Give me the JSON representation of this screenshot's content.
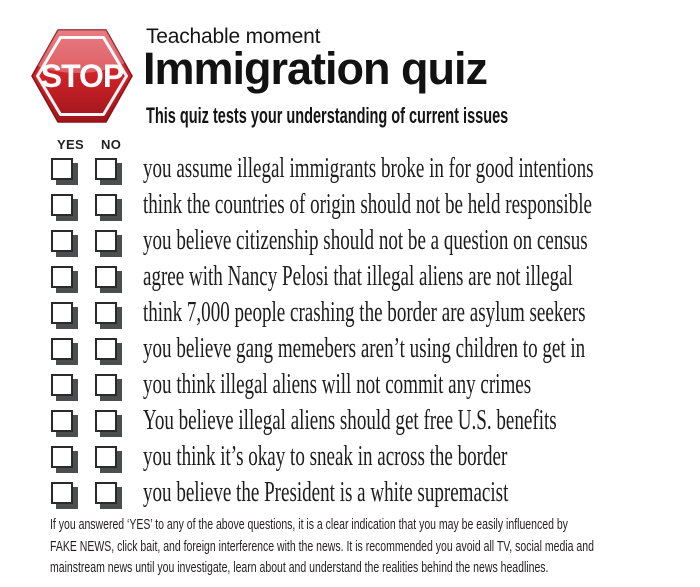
{
  "header": {
    "kicker": "Teachable moment",
    "title": "Immigration quiz",
    "subtitle": "This quiz tests your understanding of current issues",
    "stop_sign_label": "STOP"
  },
  "answer_columns": {
    "yes_label": "YES",
    "no_label": "NO"
  },
  "questions": [
    "you assume illegal immigrants broke in for good intentions",
    "think the countries of origin should not be held responsible",
    "you believe citizenship should not be a question on census",
    "agree with Nancy Pelosi that illegal aliens are not illegal",
    "think 7,000 people crashing the border are asylum seekers",
    "you believe gang memebers aren’t using children to get in",
    "you think illegal aliens will not commit any crimes",
    "You believe illegal aliens should get free U.S. benefits",
    "you think it’s okay to sneak in across the border",
    "you believe the President is a white supremacist"
  ],
  "footer": {
    "lines": [
      "If you answered ‘YES’ to any of the above questions,  it is a clear indication that you may be easily influenced by",
      "FAKE NEWS, click bait, and foreign interference with the news. It is recommended you  avoid all TV, social media and",
      "mainstream news  until  you investigate, learn about and understand the realities behind the news headlines."
    ]
  },
  "colors": {
    "stop_red": "#d2232a",
    "stop_red_light": "#e04a52",
    "stop_red_dark": "#9f151c",
    "stop_border": "#8e1118",
    "checkbox_shadow": "#4c4d4f",
    "text": "#231f20"
  }
}
